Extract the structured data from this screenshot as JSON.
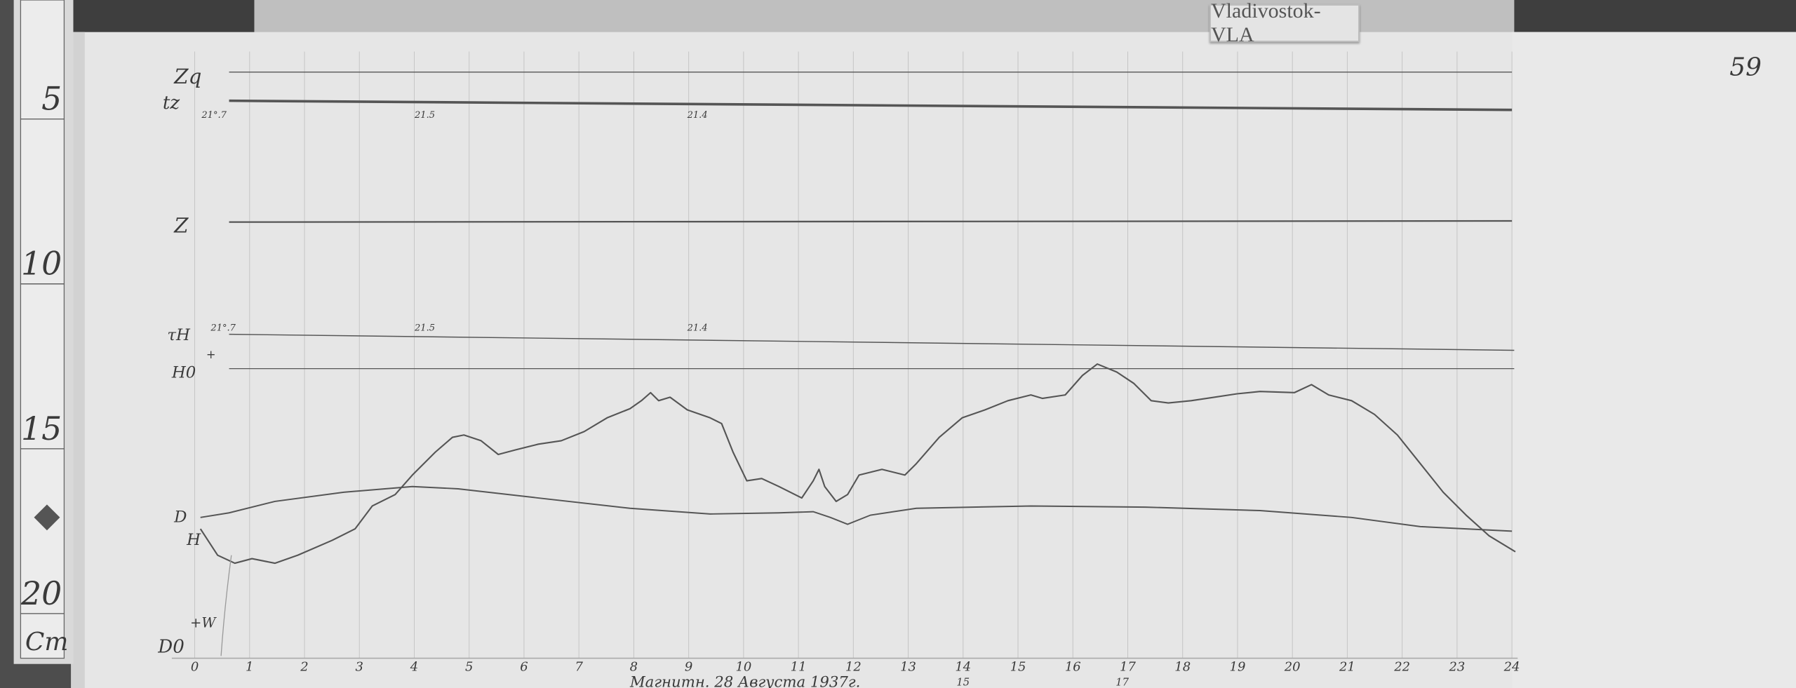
{
  "station_tag": "Vladivostok-VLA",
  "sheet_number": "59",
  "ruler": {
    "marks": [
      "5",
      "10",
      "15",
      "20"
    ],
    "unit": "Cm"
  },
  "trace_labels": {
    "zq": "Zq",
    "tz": "tz",
    "z": "Z",
    "tau_h": "τH",
    "h0": "H0",
    "d": "D",
    "h": "H",
    "d0": "D0",
    "plus_w": "+W",
    "plus": "+"
  },
  "temperatures": {
    "tz": [
      "21°.7",
      "21.5",
      "21.4"
    ],
    "tau_h": [
      "21°.7",
      "21.5",
      "21.4"
    ]
  },
  "hour_ticks": [
    "0",
    "1",
    "2",
    "3",
    "4",
    "5",
    "6",
    "7",
    "8",
    "9",
    "10",
    "11",
    "12",
    "13",
    "14",
    "15",
    "16",
    "17",
    "18",
    "19",
    "20",
    "21",
    "22",
    "23",
    "24"
  ],
  "corrected_hours": [
    "15",
    "17"
  ],
  "caption": "Магнитн. 28 Августа 1937г.",
  "colors": {
    "paper": "#e6e6e6",
    "trace": "#555555",
    "grid": "#c4c4c4",
    "frame": "#4a4a4a"
  }
}
